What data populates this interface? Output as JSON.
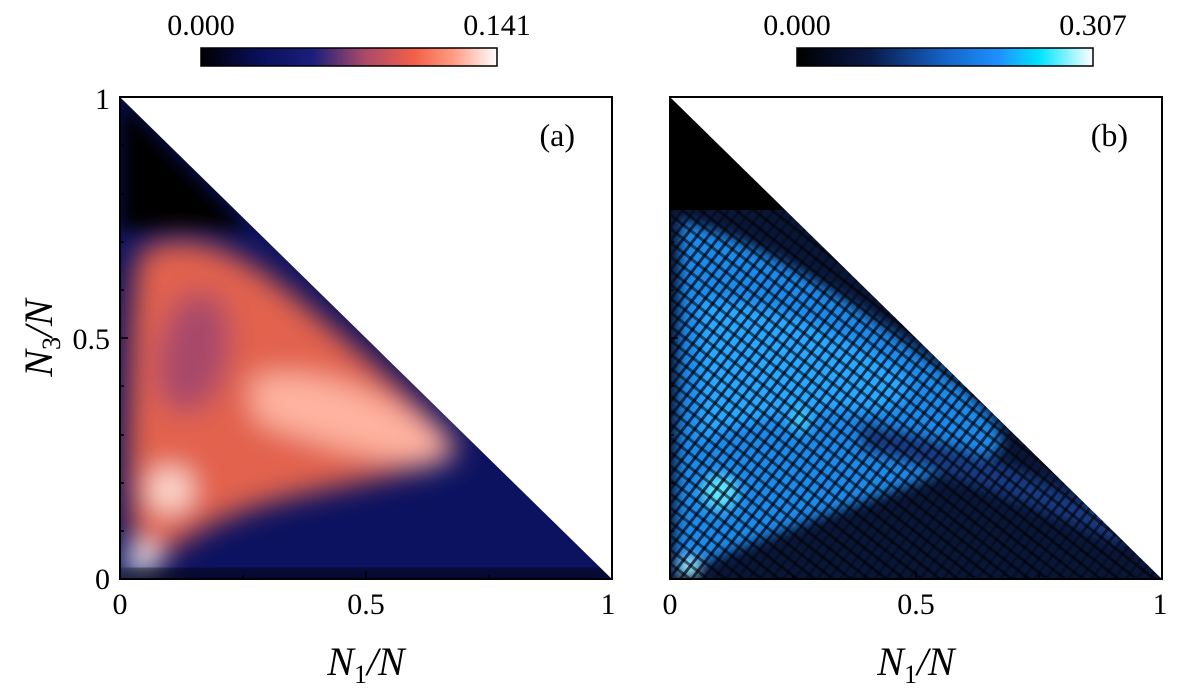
{
  "chart_data": [
    {
      "type": "heatmap",
      "panel": "(a)",
      "domain": "simplex N1/N + N3/N <= 1",
      "colormap": [
        "#000000",
        "#0a0f5c",
        "#1b1f7a",
        "#a8496a",
        "#f26048",
        "#ff8a6a",
        "#ffe6de",
        "#ffffff"
      ],
      "colorbar": {
        "min": "0.000",
        "max": "0.141",
        "min_value": 0.0,
        "max_value": 0.141
      },
      "xlabel": {
        "main": "N",
        "sub": "1",
        "tail": "/N"
      },
      "ylabel": {
        "main": "N",
        "sub": "3",
        "tail": "/N"
      },
      "xlim": [
        0,
        1
      ],
      "ylim": [
        0,
        1
      ],
      "xticks": [
        "0",
        "0.5",
        "1"
      ],
      "yticks": [
        "0",
        "0.5",
        "1"
      ]
    },
    {
      "type": "heatmap",
      "panel": "(b)",
      "domain": "simplex N1/N + N3/N <= 1",
      "colormap": [
        "#000000",
        "#0a1a4a",
        "#1464c8",
        "#1e90ff",
        "#00e5ff",
        "#ffffff"
      ],
      "colorbar": {
        "min": "0.000",
        "max": "0.307",
        "min_value": 0.0,
        "max_value": 0.307
      },
      "xlabel": {
        "main": "N",
        "sub": "1",
        "tail": "/N"
      },
      "xlim": [
        0,
        1
      ],
      "ylim": [
        0,
        1
      ],
      "xticks": [
        "0",
        "0.5",
        "1"
      ]
    }
  ]
}
